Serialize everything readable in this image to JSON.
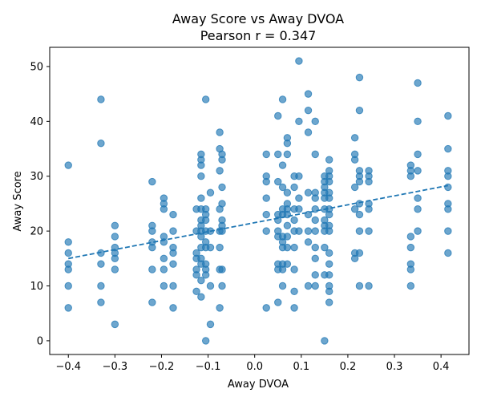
{
  "chart_data": {
    "type": "scatter",
    "title_line1": "Away Score vs Away DVOA",
    "title_line2": "Pearson r = 0.347",
    "xlabel": "Away DVOA",
    "ylabel": "Away Score",
    "xlim": [
      -0.44,
      0.46
    ],
    "ylim": [
      -2.5,
      53.5
    ],
    "xticks": [
      -0.4,
      -0.3,
      -0.2,
      -0.1,
      0.0,
      0.1,
      0.2,
      0.3,
      0.4
    ],
    "xtick_labels": [
      "−0.4",
      "−0.3",
      "−0.2",
      "−0.1",
      "0.0",
      "0.1",
      "0.2",
      "0.3",
      "0.4"
    ],
    "yticks": [
      0,
      10,
      20,
      30,
      40,
      50
    ],
    "ytick_labels": [
      "0",
      "10",
      "20",
      "30",
      "40",
      "50"
    ],
    "grid": false,
    "color": "#1f77b4",
    "trendline": {
      "x": [
        -0.4,
        0.415
      ],
      "y": [
        15.0,
        28.3
      ],
      "style": "dashed"
    },
    "points": [
      [
        -0.4,
        32
      ],
      [
        -0.4,
        18
      ],
      [
        -0.4,
        16
      ],
      [
        -0.4,
        14
      ],
      [
        -0.4,
        13
      ],
      [
        -0.4,
        10
      ],
      [
        -0.4,
        6
      ],
      [
        -0.33,
        44
      ],
      [
        -0.33,
        36
      ],
      [
        -0.33,
        16
      ],
      [
        -0.33,
        14
      ],
      [
        -0.33,
        10
      ],
      [
        -0.33,
        7
      ],
      [
        -0.3,
        21
      ],
      [
        -0.3,
        19
      ],
      [
        -0.3,
        17
      ],
      [
        -0.3,
        16
      ],
      [
        -0.3,
        15
      ],
      [
        -0.3,
        13
      ],
      [
        -0.3,
        3
      ],
      [
        -0.22,
        29
      ],
      [
        -0.22,
        21
      ],
      [
        -0.22,
        20
      ],
      [
        -0.22,
        18
      ],
      [
        -0.22,
        17
      ],
      [
        -0.22,
        13
      ],
      [
        -0.22,
        7
      ],
      [
        -0.195,
        26
      ],
      [
        -0.195,
        25
      ],
      [
        -0.195,
        24
      ],
      [
        -0.195,
        19
      ],
      [
        -0.195,
        18
      ],
      [
        -0.195,
        15
      ],
      [
        -0.195,
        13
      ],
      [
        -0.195,
        10
      ],
      [
        -0.175,
        23
      ],
      [
        -0.175,
        20
      ],
      [
        -0.175,
        17
      ],
      [
        -0.175,
        16
      ],
      [
        -0.175,
        14
      ],
      [
        -0.175,
        10
      ],
      [
        -0.175,
        6
      ],
      [
        -0.125,
        24
      ],
      [
        -0.125,
        20
      ],
      [
        -0.125,
        16
      ],
      [
        -0.125,
        15
      ],
      [
        -0.125,
        13
      ],
      [
        -0.125,
        12
      ],
      [
        -0.125,
        9
      ],
      [
        -0.115,
        34
      ],
      [
        -0.115,
        33
      ],
      [
        -0.115,
        32
      ],
      [
        -0.115,
        30
      ],
      [
        -0.115,
        26
      ],
      [
        -0.115,
        24
      ],
      [
        -0.115,
        22
      ],
      [
        -0.115,
        21
      ],
      [
        -0.115,
        20
      ],
      [
        -0.115,
        19
      ],
      [
        -0.115,
        17
      ],
      [
        -0.115,
        15
      ],
      [
        -0.115,
        14
      ],
      [
        -0.115,
        11
      ],
      [
        -0.115,
        8
      ],
      [
        -0.105,
        44
      ],
      [
        -0.105,
        24
      ],
      [
        -0.105,
        23
      ],
      [
        -0.105,
        22
      ],
      [
        -0.105,
        20
      ],
      [
        -0.105,
        18
      ],
      [
        -0.105,
        17
      ],
      [
        -0.105,
        14
      ],
      [
        -0.105,
        13
      ],
      [
        -0.105,
        12
      ],
      [
        -0.105,
        0
      ],
      [
        -0.095,
        27
      ],
      [
        -0.095,
        20
      ],
      [
        -0.095,
        17
      ],
      [
        -0.095,
        10
      ],
      [
        -0.095,
        3
      ],
      [
        -0.075,
        38
      ],
      [
        -0.075,
        35
      ],
      [
        -0.075,
        31
      ],
      [
        -0.075,
        24
      ],
      [
        -0.075,
        20
      ],
      [
        -0.075,
        17
      ],
      [
        -0.075,
        13
      ],
      [
        -0.075,
        6
      ],
      [
        -0.07,
        34
      ],
      [
        -0.07,
        33
      ],
      [
        -0.07,
        28
      ],
      [
        -0.07,
        25
      ],
      [
        -0.07,
        22
      ],
      [
        -0.07,
        21
      ],
      [
        -0.07,
        20
      ],
      [
        -0.07,
        13
      ],
      [
        -0.07,
        10
      ],
      [
        0.025,
        34
      ],
      [
        0.025,
        30
      ],
      [
        0.025,
        29
      ],
      [
        0.025,
        26
      ],
      [
        0.025,
        23
      ],
      [
        0.025,
        20
      ],
      [
        0.025,
        6
      ],
      [
        0.05,
        41
      ],
      [
        0.05,
        34
      ],
      [
        0.05,
        29
      ],
      [
        0.05,
        23
      ],
      [
        0.05,
        22
      ],
      [
        0.05,
        20
      ],
      [
        0.05,
        19
      ],
      [
        0.05,
        14
      ],
      [
        0.05,
        13
      ],
      [
        0.05,
        7
      ],
      [
        0.06,
        44
      ],
      [
        0.06,
        32
      ],
      [
        0.06,
        28
      ],
      [
        0.06,
        24
      ],
      [
        0.06,
        23
      ],
      [
        0.06,
        19
      ],
      [
        0.06,
        18
      ],
      [
        0.06,
        17
      ],
      [
        0.06,
        14
      ],
      [
        0.06,
        13
      ],
      [
        0.06,
        10
      ],
      [
        0.07,
        37
      ],
      [
        0.07,
        36
      ],
      [
        0.07,
        34
      ],
      [
        0.07,
        27
      ],
      [
        0.07,
        25
      ],
      [
        0.07,
        24
      ],
      [
        0.07,
        23
      ],
      [
        0.07,
        21
      ],
      [
        0.07,
        19
      ],
      [
        0.07,
        17
      ],
      [
        0.07,
        14
      ],
      [
        0.085,
        30
      ],
      [
        0.085,
        28
      ],
      [
        0.085,
        24
      ],
      [
        0.085,
        22
      ],
      [
        0.085,
        20
      ],
      [
        0.085,
        17
      ],
      [
        0.085,
        13
      ],
      [
        0.085,
        9
      ],
      [
        0.085,
        6
      ],
      [
        0.095,
        51
      ],
      [
        0.095,
        40
      ],
      [
        0.095,
        30
      ],
      [
        0.095,
        26
      ],
      [
        0.095,
        24
      ],
      [
        0.095,
        20
      ],
      [
        0.115,
        45
      ],
      [
        0.115,
        42
      ],
      [
        0.115,
        38
      ],
      [
        0.115,
        27
      ],
      [
        0.115,
        23
      ],
      [
        0.115,
        20
      ],
      [
        0.115,
        18
      ],
      [
        0.115,
        10
      ],
      [
        0.13,
        40
      ],
      [
        0.13,
        34
      ],
      [
        0.13,
        27
      ],
      [
        0.13,
        26
      ],
      [
        0.13,
        24
      ],
      [
        0.13,
        22
      ],
      [
        0.13,
        20
      ],
      [
        0.13,
        17
      ],
      [
        0.13,
        15
      ],
      [
        0.13,
        12
      ],
      [
        0.13,
        10
      ],
      [
        0.15,
        30
      ],
      [
        0.15,
        29
      ],
      [
        0.15,
        28
      ],
      [
        0.15,
        27
      ],
      [
        0.15,
        26
      ],
      [
        0.15,
        24
      ],
      [
        0.15,
        22
      ],
      [
        0.15,
        21
      ],
      [
        0.15,
        20
      ],
      [
        0.15,
        17
      ],
      [
        0.15,
        12
      ],
      [
        0.15,
        0
      ],
      [
        0.16,
        33
      ],
      [
        0.16,
        31
      ],
      [
        0.16,
        30
      ],
      [
        0.16,
        29
      ],
      [
        0.16,
        27
      ],
      [
        0.16,
        26
      ],
      [
        0.16,
        24
      ],
      [
        0.16,
        23
      ],
      [
        0.16,
        21
      ],
      [
        0.16,
        20
      ],
      [
        0.16,
        16
      ],
      [
        0.16,
        14
      ],
      [
        0.16,
        12
      ],
      [
        0.16,
        10
      ],
      [
        0.16,
        9
      ],
      [
        0.16,
        7
      ],
      [
        0.215,
        37
      ],
      [
        0.215,
        34
      ],
      [
        0.215,
        33
      ],
      [
        0.215,
        28
      ],
      [
        0.215,
        24
      ],
      [
        0.215,
        16
      ],
      [
        0.215,
        15
      ],
      [
        0.225,
        48
      ],
      [
        0.225,
        42
      ],
      [
        0.225,
        31
      ],
      [
        0.225,
        30
      ],
      [
        0.225,
        29
      ],
      [
        0.225,
        25
      ],
      [
        0.225,
        23
      ],
      [
        0.225,
        20
      ],
      [
        0.225,
        16
      ],
      [
        0.225,
        10
      ],
      [
        0.245,
        31
      ],
      [
        0.245,
        30
      ],
      [
        0.245,
        29
      ],
      [
        0.245,
        25
      ],
      [
        0.245,
        24
      ],
      [
        0.245,
        20
      ],
      [
        0.245,
        10
      ],
      [
        0.335,
        32
      ],
      [
        0.335,
        31
      ],
      [
        0.335,
        30
      ],
      [
        0.335,
        19
      ],
      [
        0.335,
        17
      ],
      [
        0.335,
        14
      ],
      [
        0.335,
        13
      ],
      [
        0.335,
        10
      ],
      [
        0.35,
        47
      ],
      [
        0.35,
        40
      ],
      [
        0.35,
        34
      ],
      [
        0.35,
        31
      ],
      [
        0.35,
        26
      ],
      [
        0.35,
        24
      ],
      [
        0.35,
        20
      ],
      [
        0.415,
        41
      ],
      [
        0.415,
        35
      ],
      [
        0.415,
        31
      ],
      [
        0.415,
        30
      ],
      [
        0.415,
        28
      ],
      [
        0.415,
        25
      ],
      [
        0.415,
        24
      ],
      [
        0.415,
        20
      ],
      [
        0.415,
        16
      ]
    ]
  }
}
